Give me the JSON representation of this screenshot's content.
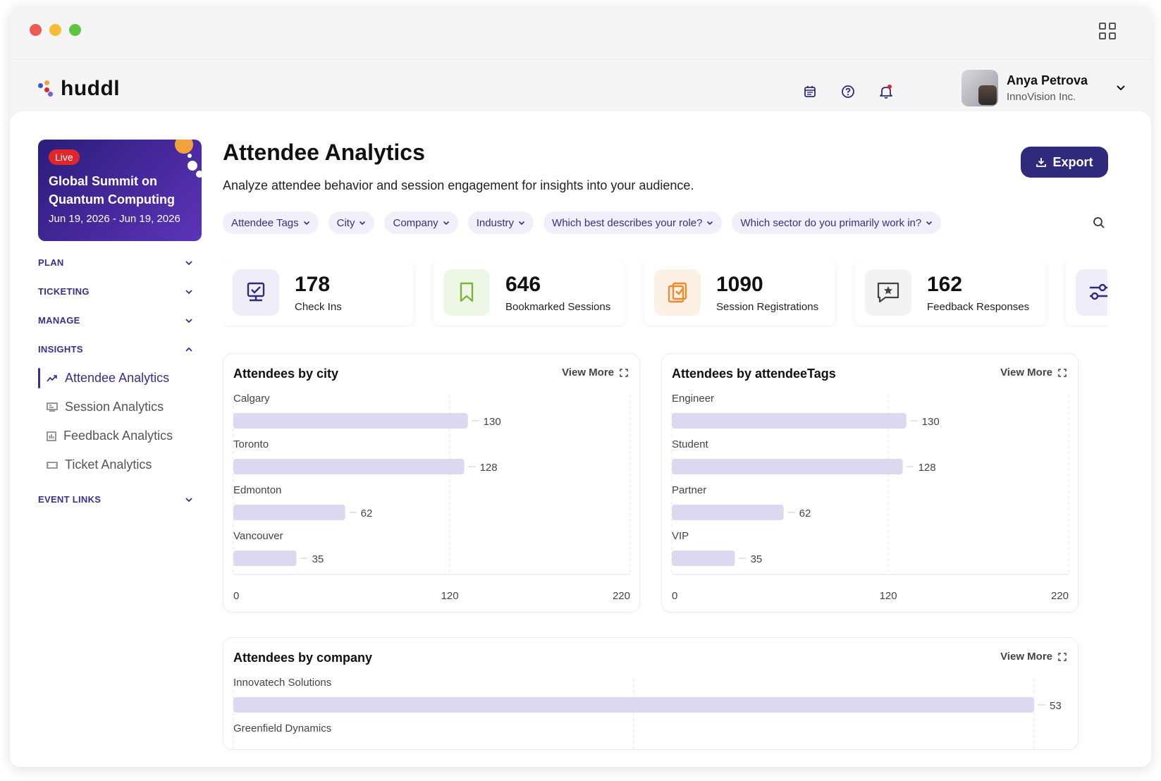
{
  "window": {
    "traffic_lights": [
      "#ee5a52",
      "#f5bd33",
      "#5fc43f"
    ]
  },
  "brand": {
    "name": "huddl",
    "colors": [
      "#3f4fd8",
      "#f2a23a",
      "#e0262b",
      "#7b5cd6"
    ]
  },
  "topbar": {
    "icons": [
      "calendar-icon",
      "help-icon",
      "bell-icon"
    ],
    "user": {
      "name": "Anya Petrova",
      "org": "InnoVision Inc."
    }
  },
  "sidebar": {
    "event": {
      "badge": "Live",
      "title": "Global Summit on Quantum Computing",
      "dates": "Jun 19, 2026 - Jun 19, 2026"
    },
    "sections": [
      {
        "label": "PLAN",
        "expanded": false
      },
      {
        "label": "TICKETING",
        "expanded": false
      },
      {
        "label": "MANAGE",
        "expanded": false
      },
      {
        "label": "INSIGHTS",
        "expanded": true
      }
    ],
    "insights_items": [
      {
        "label": "Attendee Analytics",
        "active": true,
        "icon": "trend-icon"
      },
      {
        "label": "Session Analytics",
        "active": false,
        "icon": "presentation-icon"
      },
      {
        "label": "Feedback Analytics",
        "active": false,
        "icon": "chart-box-icon"
      },
      {
        "label": "Ticket Analytics",
        "active": false,
        "icon": "ticket-icon"
      }
    ],
    "event_links": {
      "label": "EVENT LINKS",
      "expanded": false
    }
  },
  "main": {
    "title": "Attendee Analytics",
    "subtitle": "Analyze attendee behavior and session engagement for insights into your audience.",
    "export_label": "Export",
    "filters": [
      "Attendee Tags",
      "City",
      "Company",
      "Industry",
      "Which best describes your role?",
      "Which sector do you primarily work in?"
    ],
    "stats": [
      {
        "value": "178",
        "label": "Check Ins",
        "icon": "checkin-monitor-icon",
        "bg": "#eeedf8",
        "fg": "#2f2a7c"
      },
      {
        "value": "646",
        "label": "Bookmarked Sessions",
        "icon": "bookmark-icon",
        "bg": "#eef6e6",
        "fg": "#7fb140"
      },
      {
        "value": "1090",
        "label": "Session Registrations",
        "icon": "clipboard-check-icon",
        "bg": "#fdf0e4",
        "fg": "#f08a2c"
      },
      {
        "value": "162",
        "label": "Feedback Responses",
        "icon": "star-message-icon",
        "bg": "#f3f3f4",
        "fg": "#444444"
      },
      {
        "value": "",
        "label": "",
        "icon": "sliders-icon",
        "bg": "#eeedf8",
        "fg": "#2f2a7c"
      }
    ],
    "view_more_label": "View More"
  },
  "chart_data": [
    {
      "type": "bar",
      "orientation": "horizontal",
      "title": "Attendees by city",
      "categories": [
        "Calgary",
        "Toronto",
        "Edmonton",
        "Vancouver"
      ],
      "values": [
        130,
        128,
        62,
        35
      ],
      "xlim": [
        0,
        220
      ],
      "ticks": [
        "0",
        "120",
        "220"
      ],
      "grid": true,
      "bar_color": "#dcd8f0"
    },
    {
      "type": "bar",
      "orientation": "horizontal",
      "title": "Attendees by attendeeTags",
      "categories": [
        "Engineer",
        "Student",
        "Partner",
        "VIP"
      ],
      "values": [
        130,
        128,
        62,
        35
      ],
      "xlim": [
        0,
        220
      ],
      "ticks": [
        "0",
        "120",
        "220"
      ],
      "grid": true,
      "bar_color": "#dcd8f0"
    },
    {
      "type": "bar",
      "orientation": "horizontal",
      "title": "Attendees by company",
      "categories": [
        "Innovatech Solutions",
        "Greenfield Dynamics"
      ],
      "values": [
        53,
        null
      ],
      "grid": true,
      "bar_color": "#dcd8f0"
    }
  ]
}
